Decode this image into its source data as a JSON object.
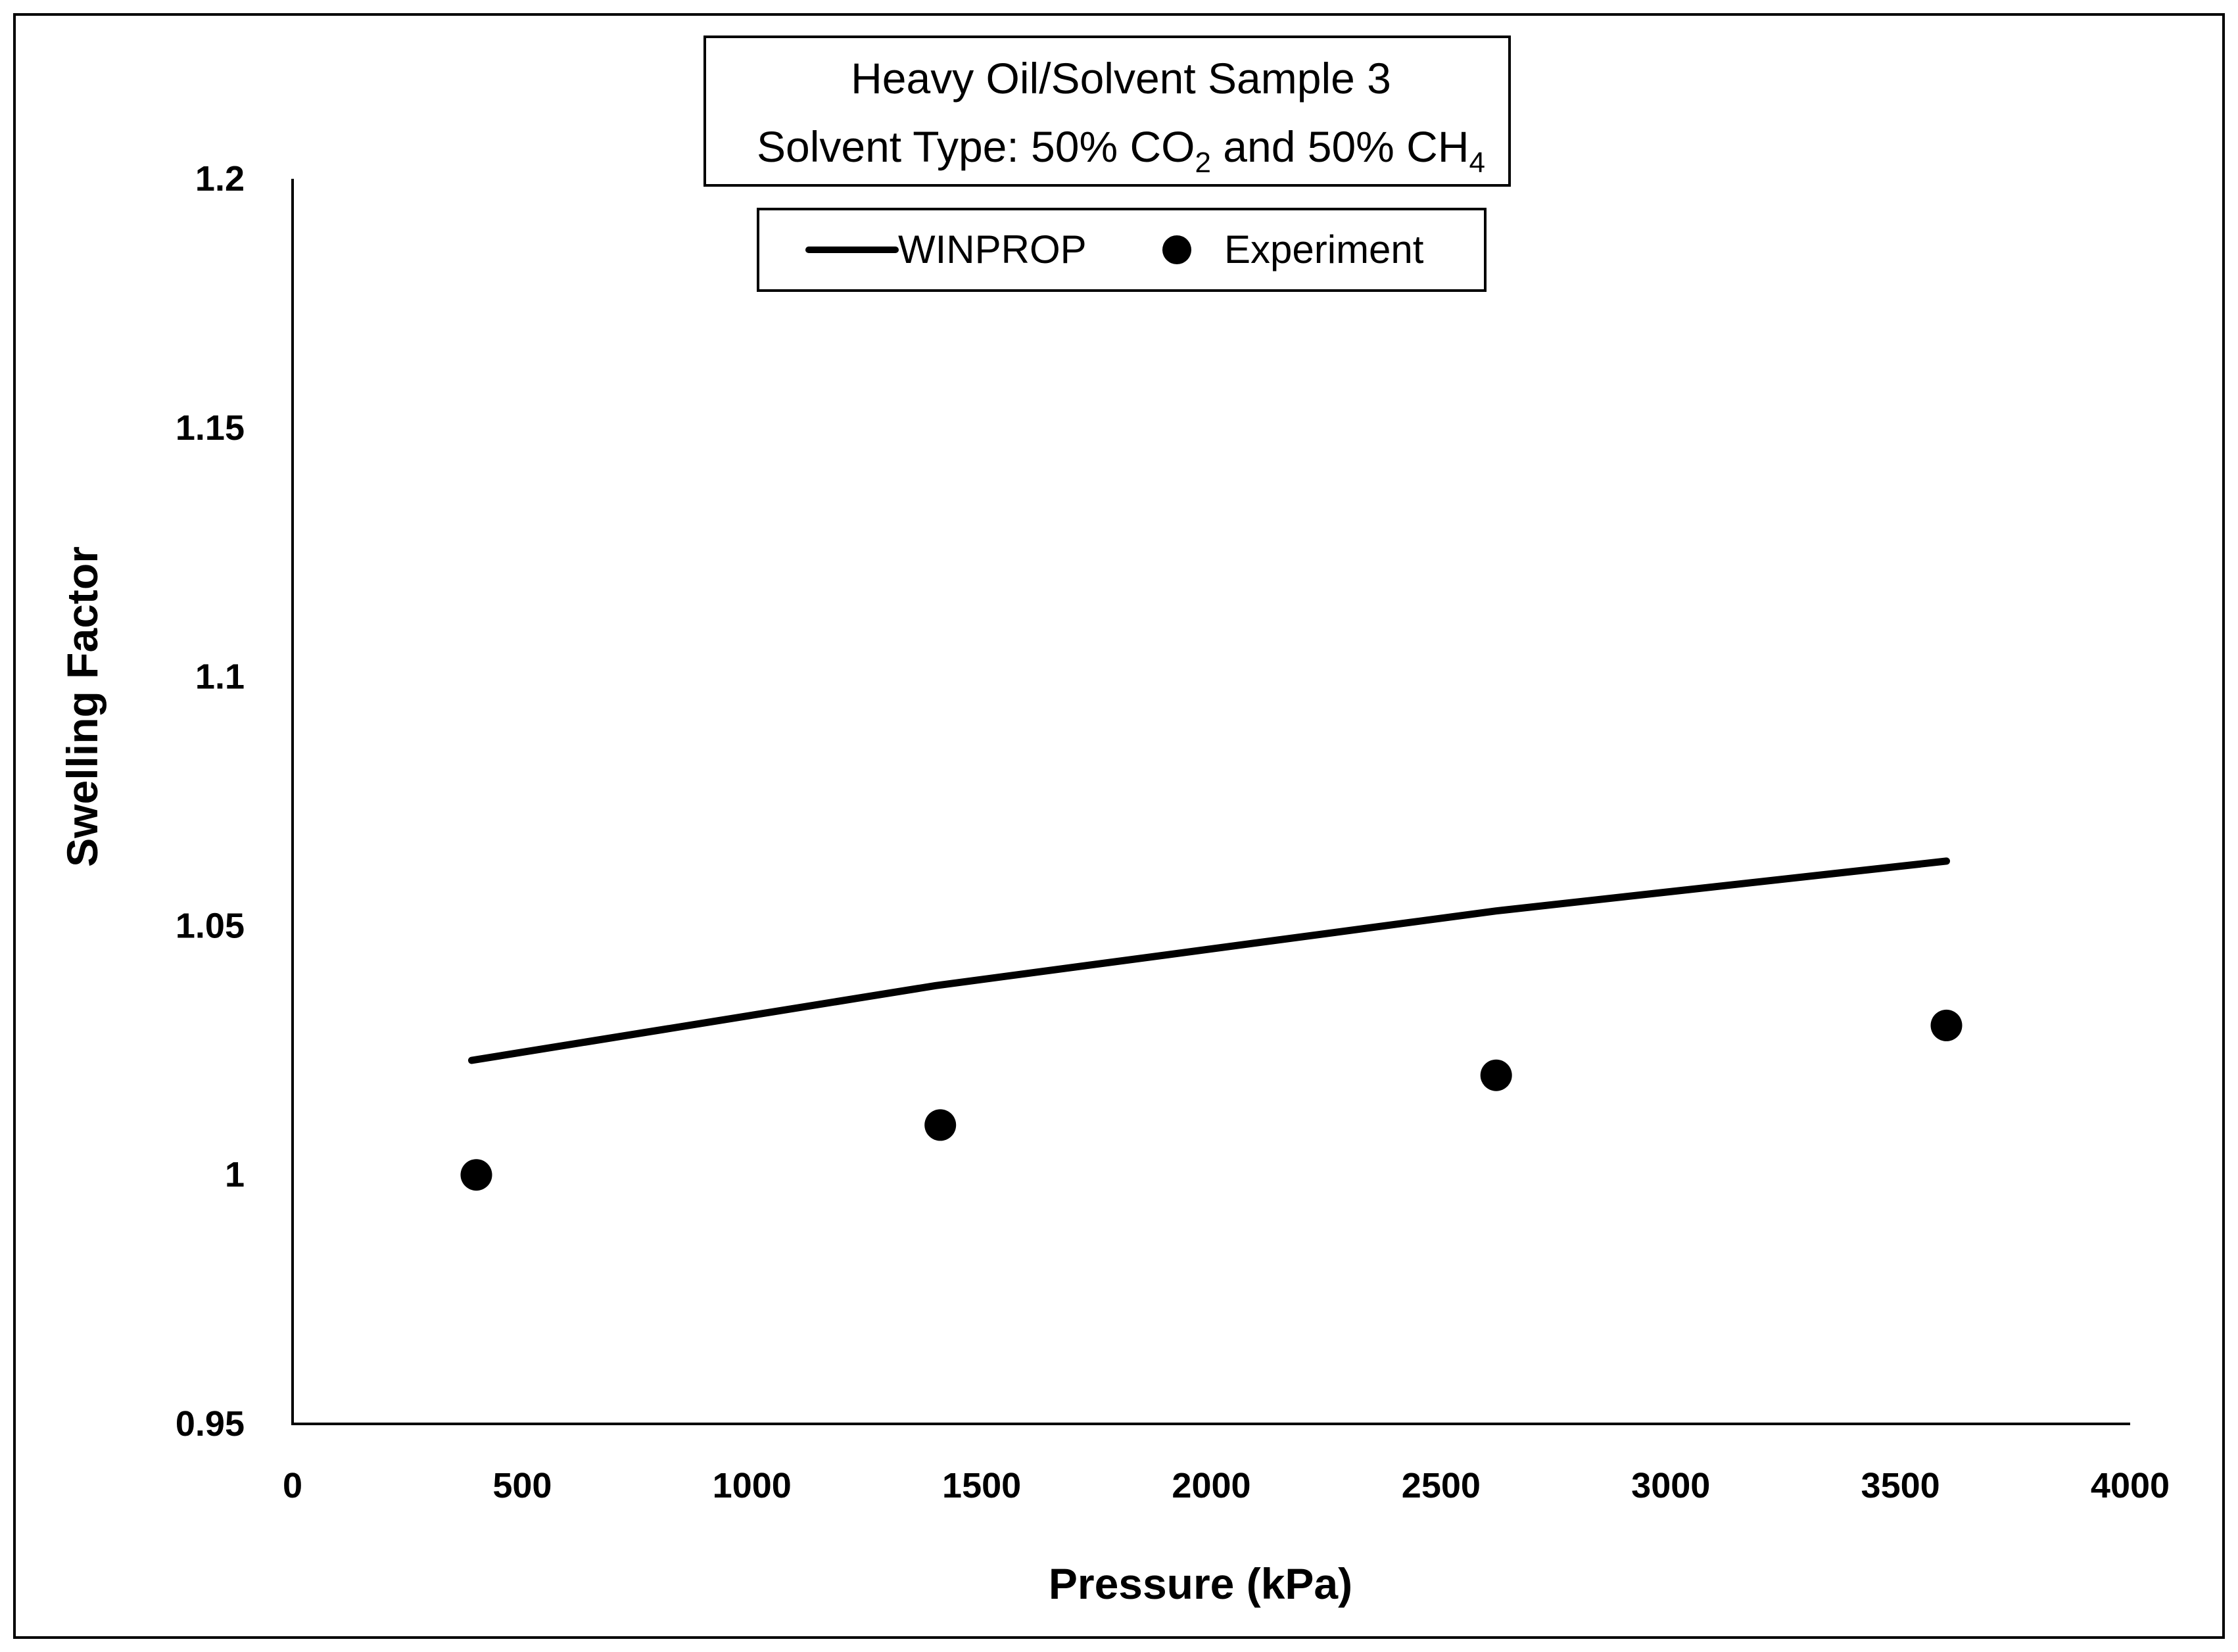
{
  "chart_data": {
    "type": "line",
    "title_lines": [
      "Heavy Oil/Solvent Sample 3"
    ],
    "subtitle": {
      "prefix": "Solvent Type: 50% CO",
      "sub1": "2",
      "middle": " and 50% CH",
      "sub2": "4"
    },
    "xlabel": "Pressure (kPa)",
    "ylabel": "Swelling Factor",
    "xlim": [
      0,
      4000
    ],
    "ylim": [
      0.95,
      1.2
    ],
    "x_ticks": [
      0,
      500,
      1000,
      1500,
      2000,
      2500,
      3000,
      3500,
      4000
    ],
    "x_tick_labels": [
      "0",
      "500",
      "1000",
      "1500",
      "2000",
      "2500",
      "3000",
      "3500",
      "4000"
    ],
    "y_ticks": [
      0.95,
      1.0,
      1.05,
      1.1,
      1.15,
      1.2
    ],
    "y_tick_labels": [
      "0.95",
      "1",
      "1.05",
      "1.1",
      "1.15",
      "1.2"
    ],
    "grid": false,
    "legend_position": "top-center",
    "series": [
      {
        "name": "WINPROP",
        "kind": "line",
        "color": "#000000",
        "x": [
          390,
          1400,
          2620,
          3600
        ],
        "y": [
          1.023,
          1.038,
          1.053,
          1.063
        ]
      },
      {
        "name": "Experiment",
        "kind": "scatter",
        "color": "#000000",
        "x": [
          400,
          1410,
          2620,
          3600
        ],
        "y": [
          1.0,
          1.01,
          1.02,
          1.03
        ]
      }
    ]
  }
}
